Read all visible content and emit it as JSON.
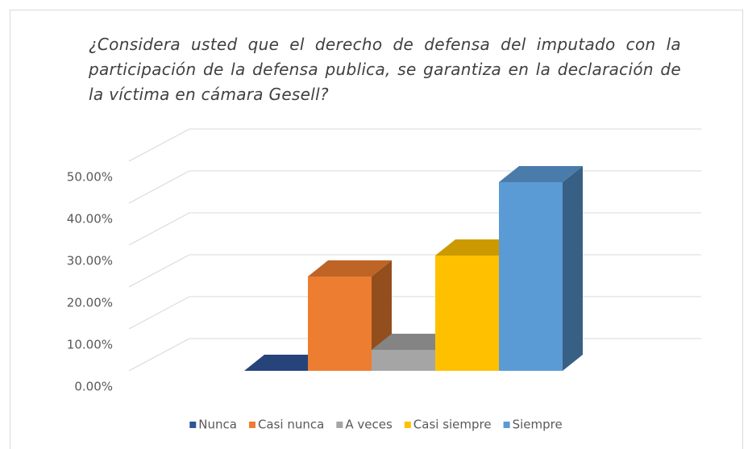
{
  "chart_data": {
    "type": "bar3d",
    "title": "¿Considera usted que el derecho de defensa del imputado con la participación de la defensa publica, se garantiza en la declaración de la víctima en cámara Gesell?",
    "categories": [
      "Nunca",
      "Casi nunca",
      "A veces",
      "Casi siempre",
      "Siempre"
    ],
    "values": [
      0,
      22.5,
      5,
      27.5,
      45
    ],
    "colors": [
      "#2f5597",
      "#ed7d31",
      "#a5a5a5",
      "#ffc000",
      "#5b9bd5"
    ],
    "ylim": [
      0,
      50
    ],
    "yticks": [
      {
        "value": 0,
        "label": "0.00%"
      },
      {
        "value": 10,
        "label": "10.00%"
      },
      {
        "value": 20,
        "label": "20.00%"
      },
      {
        "value": 30,
        "label": "30.00%"
      },
      {
        "value": 40,
        "label": "40.00%"
      },
      {
        "value": 50,
        "label": "50.00%"
      }
    ],
    "grid": true,
    "legend": "bottom"
  }
}
